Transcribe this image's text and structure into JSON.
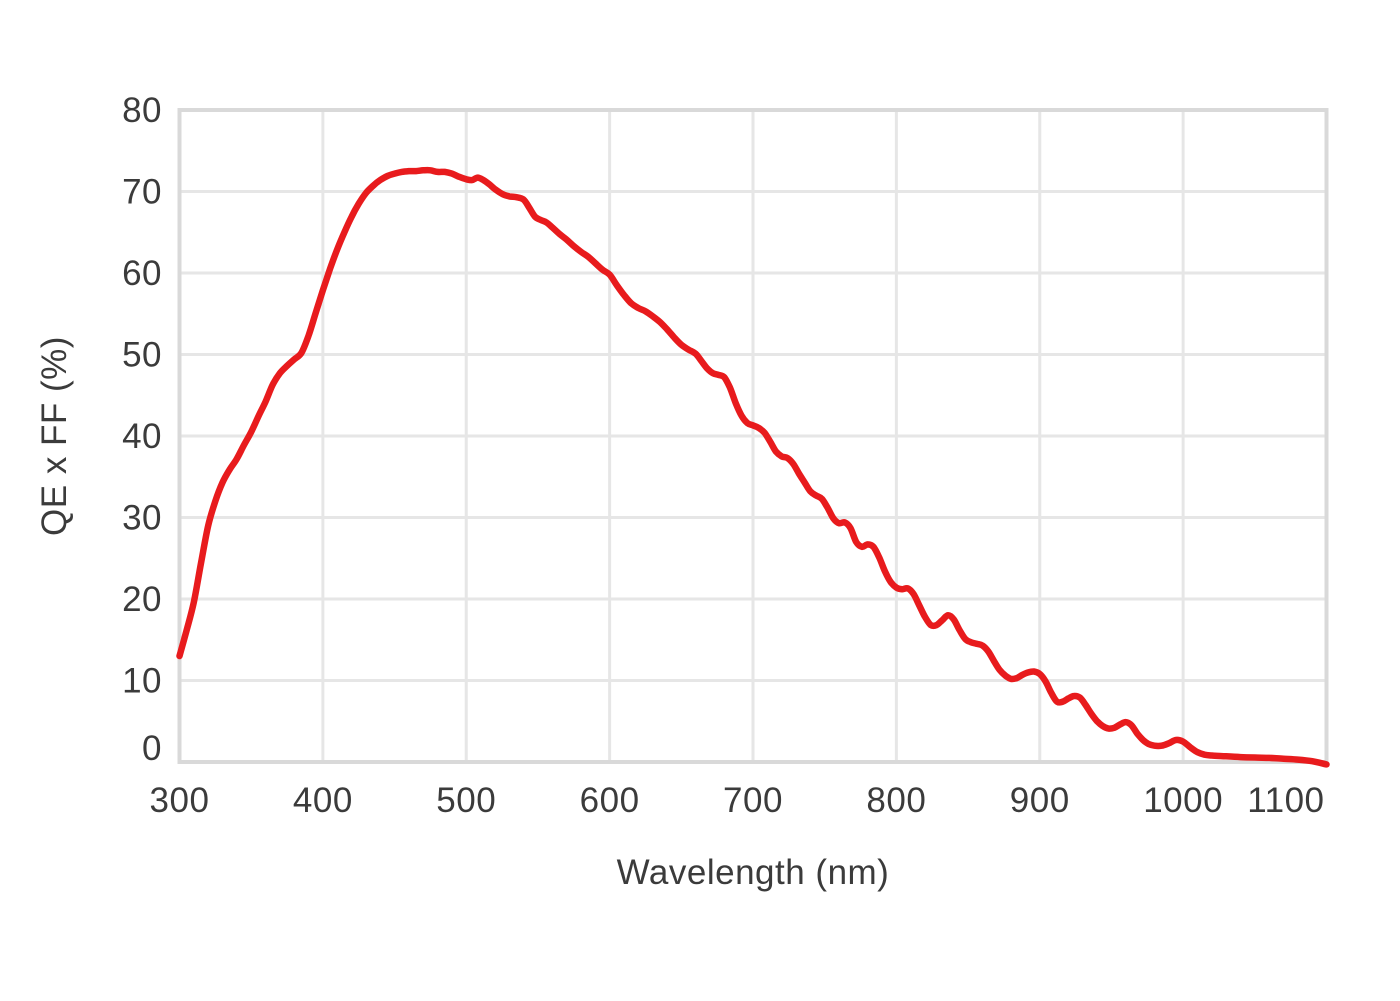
{
  "page": {
    "background_color": "#ffffff",
    "text_color": "#3b3b3b"
  },
  "chart_data": {
    "type": "line",
    "title": "",
    "xlabel": "Wavelength (nm)",
    "ylabel": "QE x FF (%)",
    "x_range": [
      300,
      1100
    ],
    "y_range": [
      0,
      80
    ],
    "x_ticks": [
      300,
      400,
      500,
      600,
      700,
      800,
      900,
      1000,
      1100
    ],
    "y_ticks": [
      0,
      10,
      20,
      30,
      40,
      50,
      60,
      70,
      80
    ],
    "grid": true,
    "legend_position": "none",
    "grid_color": "#e6e6e6",
    "border_color": "#d9d9d9",
    "series": [
      {
        "name": "QE x FF",
        "color": "#e81b1d",
        "points": [
          [
            300,
            13.0
          ],
          [
            305,
            16.2
          ],
          [
            310,
            19.6
          ],
          [
            315,
            24.4
          ],
          [
            320,
            29.0
          ],
          [
            325,
            32.0
          ],
          [
            330,
            34.3
          ],
          [
            335,
            35.9
          ],
          [
            340,
            37.2
          ],
          [
            345,
            38.9
          ],
          [
            350,
            40.5
          ],
          [
            355,
            42.4
          ],
          [
            360,
            44.2
          ],
          [
            365,
            46.3
          ],
          [
            370,
            47.7
          ],
          [
            375,
            48.6
          ],
          [
            380,
            49.4
          ],
          [
            385,
            50.2
          ],
          [
            390,
            52.3
          ],
          [
            395,
            55.1
          ],
          [
            400,
            57.9
          ],
          [
            405,
            60.5
          ],
          [
            410,
            62.9
          ],
          [
            415,
            65.0
          ],
          [
            420,
            66.9
          ],
          [
            425,
            68.5
          ],
          [
            430,
            69.8
          ],
          [
            435,
            70.7
          ],
          [
            440,
            71.4
          ],
          [
            445,
            71.9
          ],
          [
            450,
            72.2
          ],
          [
            455,
            72.4
          ],
          [
            460,
            72.5
          ],
          [
            465,
            72.5
          ],
          [
            470,
            72.6
          ],
          [
            475,
            72.6
          ],
          [
            480,
            72.4
          ],
          [
            485,
            72.4
          ],
          [
            490,
            72.2
          ],
          [
            495,
            71.8
          ],
          [
            500,
            71.5
          ],
          [
            504,
            71.4
          ],
          [
            508,
            71.7
          ],
          [
            512,
            71.4
          ],
          [
            516,
            70.9
          ],
          [
            520,
            70.3
          ],
          [
            525,
            69.7
          ],
          [
            530,
            69.4
          ],
          [
            535,
            69.3
          ],
          [
            540,
            69.0
          ],
          [
            544,
            68.0
          ],
          [
            548,
            66.9
          ],
          [
            552,
            66.5
          ],
          [
            556,
            66.2
          ],
          [
            560,
            65.6
          ],
          [
            565,
            64.8
          ],
          [
            570,
            64.1
          ],
          [
            575,
            63.3
          ],
          [
            580,
            62.6
          ],
          [
            585,
            62.0
          ],
          [
            590,
            61.2
          ],
          [
            595,
            60.4
          ],
          [
            600,
            59.8
          ],
          [
            605,
            58.5
          ],
          [
            610,
            57.3
          ],
          [
            615,
            56.3
          ],
          [
            620,
            55.7
          ],
          [
            625,
            55.3
          ],
          [
            630,
            54.7
          ],
          [
            635,
            54.0
          ],
          [
            640,
            53.1
          ],
          [
            645,
            52.1
          ],
          [
            650,
            51.2
          ],
          [
            655,
            50.6
          ],
          [
            660,
            50.1
          ],
          [
            664,
            49.2
          ],
          [
            668,
            48.3
          ],
          [
            672,
            47.7
          ],
          [
            676,
            47.5
          ],
          [
            680,
            47.2
          ],
          [
            684,
            45.9
          ],
          [
            688,
            44.0
          ],
          [
            692,
            42.5
          ],
          [
            696,
            41.6
          ],
          [
            700,
            41.3
          ],
          [
            704,
            41.0
          ],
          [
            708,
            40.4
          ],
          [
            712,
            39.3
          ],
          [
            716,
            38.1
          ],
          [
            720,
            37.5
          ],
          [
            724,
            37.3
          ],
          [
            728,
            36.6
          ],
          [
            732,
            35.4
          ],
          [
            736,
            34.3
          ],
          [
            740,
            33.2
          ],
          [
            744,
            32.7
          ],
          [
            748,
            32.3
          ],
          [
            752,
            31.2
          ],
          [
            756,
            29.9
          ],
          [
            760,
            29.3
          ],
          [
            764,
            29.4
          ],
          [
            768,
            28.7
          ],
          [
            772,
            27.0
          ],
          [
            776,
            26.4
          ],
          [
            780,
            26.7
          ],
          [
            784,
            26.4
          ],
          [
            788,
            25.1
          ],
          [
            792,
            23.4
          ],
          [
            796,
            22.1
          ],
          [
            800,
            21.4
          ],
          [
            804,
            21.2
          ],
          [
            808,
            21.3
          ],
          [
            812,
            20.6
          ],
          [
            816,
            19.2
          ],
          [
            820,
            17.8
          ],
          [
            824,
            16.8
          ],
          [
            828,
            16.8
          ],
          [
            832,
            17.4
          ],
          [
            836,
            18.0
          ],
          [
            840,
            17.5
          ],
          [
            844,
            16.2
          ],
          [
            848,
            15.1
          ],
          [
            852,
            14.7
          ],
          [
            856,
            14.5
          ],
          [
            860,
            14.3
          ],
          [
            864,
            13.6
          ],
          [
            868,
            12.4
          ],
          [
            872,
            11.3
          ],
          [
            876,
            10.6
          ],
          [
            880,
            10.2
          ],
          [
            884,
            10.3
          ],
          [
            888,
            10.7
          ],
          [
            892,
            11.0
          ],
          [
            896,
            11.1
          ],
          [
            900,
            10.8
          ],
          [
            904,
            9.9
          ],
          [
            908,
            8.5
          ],
          [
            912,
            7.4
          ],
          [
            916,
            7.4
          ],
          [
            920,
            7.8
          ],
          [
            924,
            8.1
          ],
          [
            928,
            7.9
          ],
          [
            932,
            7.0
          ],
          [
            936,
            5.9
          ],
          [
            940,
            5.0
          ],
          [
            944,
            4.4
          ],
          [
            948,
            4.1
          ],
          [
            952,
            4.2
          ],
          [
            956,
            4.6
          ],
          [
            960,
            4.9
          ],
          [
            964,
            4.5
          ],
          [
            968,
            3.5
          ],
          [
            972,
            2.7
          ],
          [
            976,
            2.2
          ],
          [
            980,
            2.0
          ],
          [
            985,
            2.0
          ],
          [
            990,
            2.3
          ],
          [
            995,
            2.7
          ],
          [
            1000,
            2.5
          ],
          [
            1005,
            1.8
          ],
          [
            1010,
            1.2
          ],
          [
            1015,
            0.9
          ],
          [
            1020,
            0.8
          ],
          [
            1030,
            0.7
          ],
          [
            1040,
            0.6
          ],
          [
            1050,
            0.55
          ],
          [
            1060,
            0.5
          ],
          [
            1070,
            0.4
          ],
          [
            1080,
            0.3
          ],
          [
            1090,
            0.1
          ],
          [
            1100,
            -0.3
          ]
        ]
      }
    ]
  }
}
